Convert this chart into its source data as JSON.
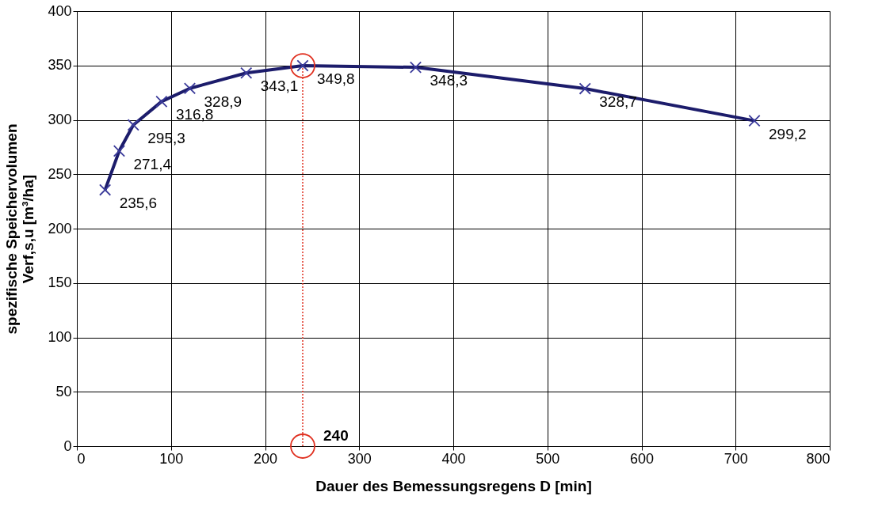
{
  "chart_data": {
    "type": "line",
    "xlabel": "Dauer des Bemessungsregens D [min]",
    "ylabel": "spezifische Speichervolumen\nVerf,s,u [m³/ha]",
    "series": [
      {
        "color": "#1c1c6b",
        "marker": "cross",
        "x": [
          30,
          45,
          60,
          90,
          120,
          180,
          240,
          360,
          540,
          720
        ],
        "values": [
          235.6,
          271.4,
          295.3,
          316.8,
          328.9,
          343.1,
          349.8,
          348.3,
          328.7,
          299.2
        ],
        "value_labels": [
          "235,6",
          "271,4",
          "295,3",
          "316,8",
          "328,9",
          "343,1",
          "349,8",
          "348,3",
          "328,7",
          "299,2"
        ]
      },
      {
        "type": "scatter",
        "color": "#e03020",
        "marker": "circle",
        "x": [
          240,
          240
        ],
        "values": [
          349.8,
          0
        ]
      }
    ],
    "ref_lines": [
      {
        "axis": "x",
        "value": 240,
        "label": "240",
        "color": "#e03020",
        "line_style": "dotted"
      }
    ],
    "xlim": [
      0,
      800
    ],
    "xticks": [
      0,
      100,
      200,
      300,
      400,
      500,
      600,
      700,
      800
    ],
    "ylim": [
      0,
      400
    ],
    "yticks": [
      0,
      50,
      100,
      150,
      200,
      250,
      300,
      350,
      400
    ],
    "grid": true
  }
}
